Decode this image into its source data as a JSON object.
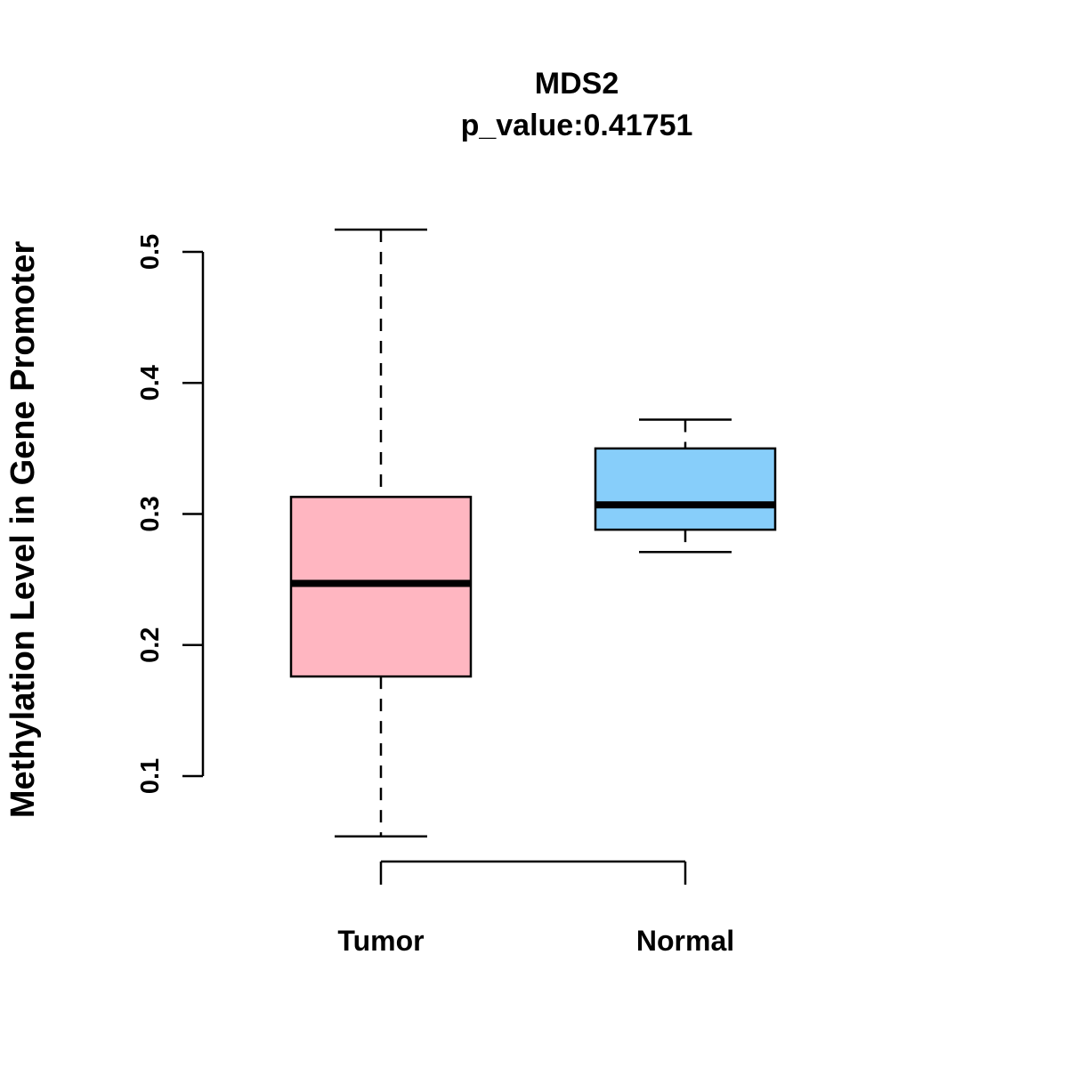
{
  "chart_data": {
    "type": "boxplot",
    "title": "MDS2",
    "subtitle": "p_value:0.41751",
    "ylabel": "Methylation Level in Gene Promoter",
    "xlabel": "",
    "categories": [
      "Tumor",
      "Normal"
    ],
    "yticks": [
      0.1,
      0.2,
      0.3,
      0.4,
      0.5
    ],
    "ylim": [
      0.05,
      0.52
    ],
    "grid": false,
    "legend": "none",
    "series": [
      {
        "name": "Tumor",
        "lower_whisker": 0.054,
        "q1": 0.176,
        "median": 0.247,
        "q3": 0.313,
        "upper_whisker": 0.517,
        "color": "#FFB6C1"
      },
      {
        "name": "Normal",
        "lower_whisker": 0.271,
        "q1": 0.288,
        "median": 0.307,
        "q3": 0.35,
        "upper_whisker": 0.372,
        "color": "#87CEFA"
      }
    ]
  }
}
